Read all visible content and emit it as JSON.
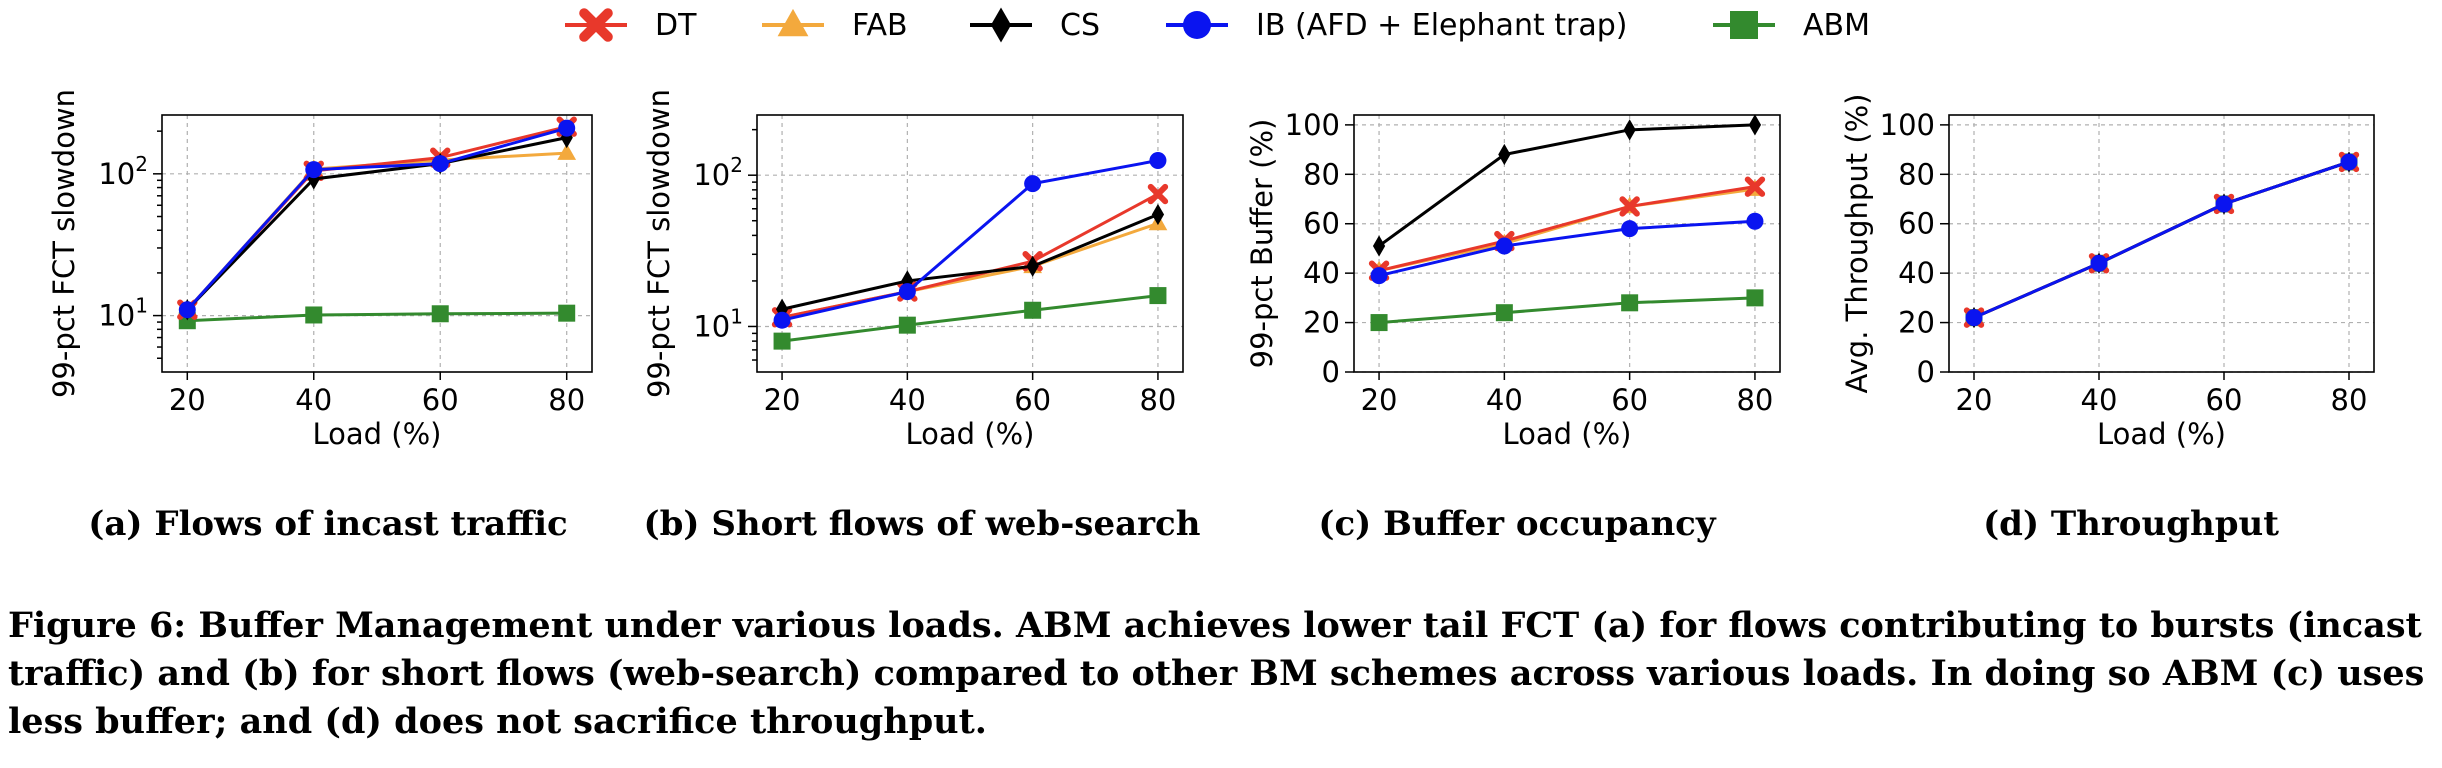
{
  "legend": [
    {
      "name": "DT",
      "color": "#e8382b",
      "marker": "x"
    },
    {
      "name": "FAB",
      "color": "#f3a93d",
      "marker": "triangle"
    },
    {
      "name": "CS",
      "color": "#000000",
      "marker": "diamond"
    },
    {
      "name": "IB (AFD + Elephant trap)",
      "color": "#0a14f0",
      "marker": "circle"
    },
    {
      "name": "ABM",
      "color": "#338a2e",
      "marker": "square"
    }
  ],
  "chart_data": [
    {
      "type": "line",
      "caption": "(a) Flows of incast traffic",
      "xlabel": "Load (%)",
      "ylabel": "99-pct FCT slowdown",
      "yscale": "log",
      "ylim": [
        4,
        260
      ],
      "xlim": [
        16,
        84
      ],
      "x": [
        20,
        40,
        60,
        80
      ],
      "xticks": [
        "20",
        "40",
        "60",
        "80"
      ],
      "yticks": [
        {
          "v": 10,
          "t": "10",
          "e": "1"
        },
        {
          "v": 100,
          "t": "10",
          "e": "2"
        }
      ],
      "grid": true,
      "series": [
        {
          "name": "DT",
          "values": [
            11,
            105,
            130,
            215
          ]
        },
        {
          "name": "FAB",
          "values": [
            11,
            108,
            125,
            140
          ]
        },
        {
          "name": "CS",
          "values": [
            11,
            92,
            118,
            180
          ]
        },
        {
          "name": "IB (AFD + Elephant trap)",
          "values": [
            11,
            107,
            118,
            210
          ]
        },
        {
          "name": "ABM",
          "values": [
            9.2,
            10.1,
            10.3,
            10.4
          ]
        }
      ]
    },
    {
      "type": "line",
      "caption": "(b) Short flows of web-search",
      "xlabel": "Load (%)",
      "ylabel": "99-pct FCT slowdown",
      "yscale": "log",
      "ylim": [
        5,
        250
      ],
      "xlim": [
        16,
        84
      ],
      "x": [
        20,
        40,
        60,
        80
      ],
      "xticks": [
        "20",
        "40",
        "60",
        "80"
      ],
      "yticks": [
        {
          "v": 10,
          "t": "10",
          "e": "1"
        },
        {
          "v": 100,
          "t": "10",
          "e": "2"
        }
      ],
      "grid": true,
      "series": [
        {
          "name": "DT",
          "values": [
            11.5,
            17,
            27,
            75
          ]
        },
        {
          "name": "FAB",
          "values": [
            11.5,
            17,
            25,
            48
          ]
        },
        {
          "name": "CS",
          "values": [
            13,
            20,
            25,
            55
          ]
        },
        {
          "name": "IB (AFD + Elephant trap)",
          "values": [
            11,
            17,
            88,
            125
          ]
        },
        {
          "name": "ABM",
          "values": [
            8,
            10.2,
            12.8,
            16
          ]
        }
      ]
    },
    {
      "type": "line",
      "caption": "(c) Buffer occupancy",
      "xlabel": "Load (%)",
      "ylabel": "99-pct Buffer (%)",
      "yscale": "linear",
      "ylim": [
        0,
        104
      ],
      "xlim": [
        16,
        84
      ],
      "x": [
        20,
        40,
        60,
        80
      ],
      "xticks": [
        "20",
        "40",
        "60",
        "80"
      ],
      "yticks": [
        {
          "v": 0,
          "t": "0"
        },
        {
          "v": 20,
          "t": "20"
        },
        {
          "v": 40,
          "t": "40"
        },
        {
          "v": 60,
          "t": "60"
        },
        {
          "v": 80,
          "t": "80"
        },
        {
          "v": 100,
          "t": "100"
        }
      ],
      "grid": true,
      "series": [
        {
          "name": "DT",
          "values": [
            41,
            53,
            67,
            75
          ]
        },
        {
          "name": "FAB",
          "values": [
            41,
            52,
            67,
            74
          ]
        },
        {
          "name": "CS",
          "values": [
            51,
            88,
            98,
            100
          ]
        },
        {
          "name": "IB (AFD + Elephant trap)",
          "values": [
            39,
            51,
            58,
            61
          ]
        },
        {
          "name": "ABM",
          "values": [
            20,
            24,
            28,
            30
          ]
        }
      ]
    },
    {
      "type": "line",
      "caption": "(d) Throughput",
      "xlabel": "Load (%)",
      "ylabel": "Avg. Throughput (%)",
      "yscale": "linear",
      "ylim": [
        0,
        104
      ],
      "xlim": [
        16,
        84
      ],
      "x": [
        20,
        40,
        60,
        80
      ],
      "xticks": [
        "20",
        "40",
        "60",
        "80"
      ],
      "yticks": [
        {
          "v": 0,
          "t": "0"
        },
        {
          "v": 20,
          "t": "20"
        },
        {
          "v": 40,
          "t": "40"
        },
        {
          "v": 60,
          "t": "60"
        },
        {
          "v": 80,
          "t": "80"
        },
        {
          "v": 100,
          "t": "100"
        }
      ],
      "grid": true,
      "series": [
        {
          "name": "DT",
          "values": [
            22,
            44,
            68,
            85
          ]
        },
        {
          "name": "FAB",
          "values": [
            22,
            44,
            68,
            85
          ]
        },
        {
          "name": "CS",
          "values": [
            22,
            44,
            68,
            85
          ]
        },
        {
          "name": "IB (AFD + Elephant trap)",
          "values": [
            22,
            44,
            68,
            85
          ]
        },
        {
          "name": "ABM",
          "values": [
            22,
            44,
            68,
            85
          ]
        }
      ]
    }
  ],
  "caption": "Figure 6: Buffer Management under various loads. ABM achieves lower tail FCT (a) for flows contributing to bursts (incast traffic) and (b) for short flows (web-search) compared to other BM schemes across various loads. In doing so ABM (c) uses less buffer; and (d) does not sacrifice throughput."
}
